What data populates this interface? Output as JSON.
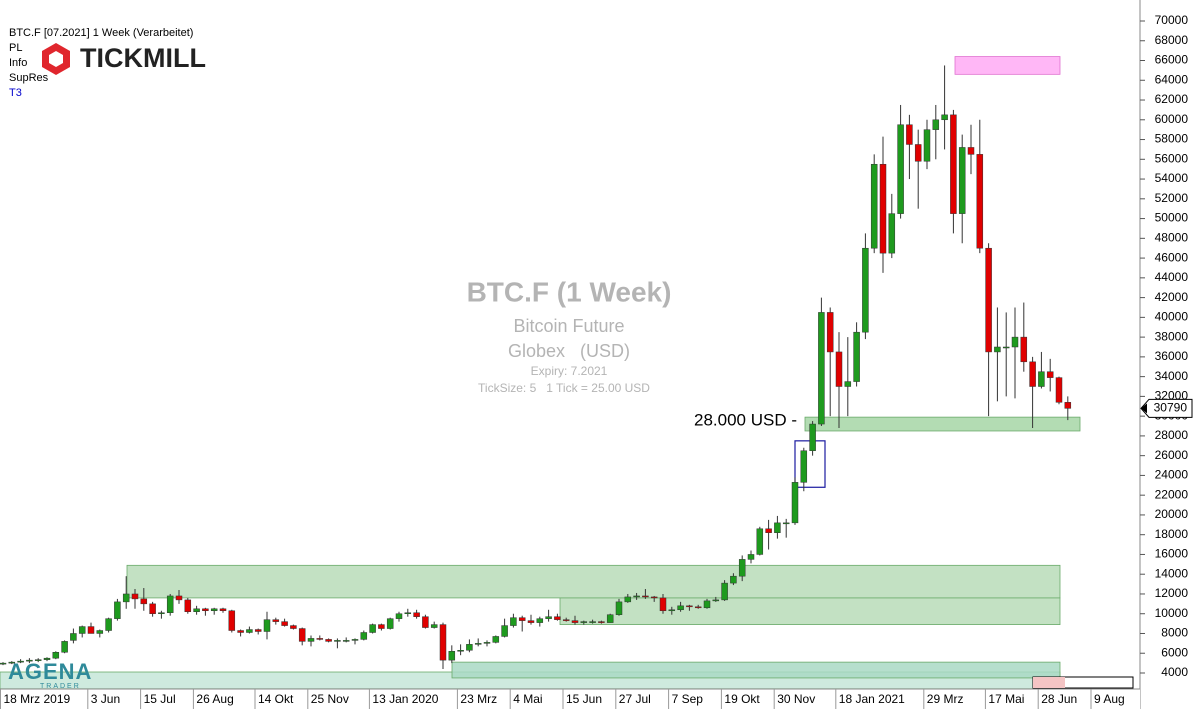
{
  "chart_data": {
    "type": "candlestick",
    "header": {
      "title": "BTC.F [07.2021] 1 Week (Verarbeitet)",
      "items": [
        "PL",
        "Info",
        "SupRes",
        "T3"
      ]
    },
    "logos": {
      "broker": "TICKMILL",
      "platform": "AGENA",
      "platform_sub": "TRADER"
    },
    "watermark": {
      "title": "BTC.F (1 Week)",
      "name": "Bitcoin Future",
      "exchange": "Globex   (USD)",
      "expiry": "Expiry: 7.2021",
      "ticksize": "TickSize: 5   1 Tick = 25.00 USD"
    },
    "annotation": "28.000 USD -",
    "up_color": "#1e9a1e",
    "down_color": "#e00000",
    "categories": [
      "18 Mrz 2019",
      null,
      null,
      null,
      null,
      null,
      null,
      null,
      null,
      null,
      null,
      "3 Jun",
      null,
      null,
      null,
      null,
      null,
      "15 Jul",
      null,
      null,
      null,
      null,
      null,
      "26 Aug",
      null,
      null,
      null,
      null,
      null,
      null,
      "14 Okt",
      null,
      null,
      null,
      null,
      null,
      "25 Nov",
      null,
      null,
      null,
      null,
      null,
      null,
      "13 Jan 2020",
      null,
      null,
      null,
      null,
      null,
      null,
      null,
      null,
      null,
      "23 Mrz",
      null,
      null,
      null,
      null,
      null,
      "4 Mai",
      null,
      null,
      null,
      null,
      null,
      "15 Jun",
      null,
      null,
      null,
      null,
      null,
      "27 Jul",
      null,
      null,
      null,
      null,
      null,
      "7 Sep",
      null,
      null,
      null,
      null,
      null,
      "19 Okt",
      null,
      null,
      null,
      null,
      null,
      "30 Nov",
      null,
      null,
      null,
      null,
      null,
      null,
      "18 Jan 2021",
      null,
      null,
      null,
      null,
      null,
      null,
      null,
      null,
      null,
      "29 Mrz",
      null,
      null,
      null,
      null,
      null,
      null,
      "17 Mai",
      null,
      null,
      null,
      null,
      null,
      "28 Jun",
      null,
      null,
      null,
      null,
      null,
      "9 Aug"
    ],
    "open": [
      4950,
      5000,
      5100,
      5200,
      5300,
      5350,
      5500,
      6100,
      7300,
      8000,
      8700,
      8000,
      8300,
      9500,
      11200,
      12000,
      11500,
      11000,
      10000,
      10100,
      11800,
      11400,
      10200,
      10500,
      10300,
      10500,
      10300,
      8300,
      8100,
      8400,
      8200,
      9400,
      9200,
      8800,
      8500,
      7200,
      7500,
      7400,
      7200,
      7300,
      7300,
      7400,
      8100,
      8900,
      8500,
      9500,
      10000,
      10100,
      9700,
      8600,
      8900,
      5300,
      6200,
      6300,
      6900,
      7000,
      7100,
      7700,
      8800,
      9600,
      9300,
      9100,
      9500,
      9700,
      9400,
      9300,
      9100,
      9200,
      9200,
      9100,
      9900,
      11200,
      11700,
      11800,
      11700,
      11600,
      10300,
      10400,
      10800,
      10700,
      10600,
      11300,
      11400,
      13100,
      13800,
      15500,
      16000,
      18600,
      18200,
      19200,
      19200,
      23300,
      26500,
      29200,
      40500,
      36500,
      33000,
      33500,
      38500,
      47000,
      55500,
      46500,
      50500,
      59500,
      57500,
      55800,
      59000,
      60000,
      60500,
      50500,
      57200,
      56500,
      47000,
      36500,
      37000,
      37000,
      38000,
      35500,
      33000,
      34500,
      33900,
      31400,
      null,
      null,
      null,
      null
    ],
    "high": [
      5100,
      5200,
      5400,
      5500,
      5500,
      5600,
      6200,
      7300,
      8500,
      8800,
      9100,
      8400,
      9600,
      11500,
      13800,
      12500,
      12600,
      11200,
      10300,
      12000,
      12400,
      11600,
      10800,
      10600,
      10600,
      10600,
      10400,
      8400,
      8700,
      8500,
      10200,
      9600,
      9500,
      8900,
      8600,
      7800,
      7800,
      7500,
      7500,
      7600,
      7500,
      8300,
      9000,
      9000,
      9600,
      10200,
      10500,
      10400,
      9900,
      9200,
      9100,
      6800,
      6900,
      7400,
      7500,
      7300,
      7800,
      9500,
      10000,
      9800,
      9900,
      9700,
      10400,
      10000,
      9600,
      9800,
      9300,
      9400,
      9300,
      10000,
      11500,
      12000,
      12100,
      12500,
      11800,
      12000,
      10700,
      11200,
      10900,
      10900,
      11500,
      11700,
      13400,
      14100,
      15900,
      16400,
      18800,
      19500,
      19900,
      19600,
      23800,
      26800,
      29500,
      42000,
      41000,
      38500,
      38000,
      39500,
      48500,
      56500,
      58300,
      52500,
      61500,
      60500,
      59000,
      60000,
      61500,
      65500,
      61000,
      58500,
      59500,
      60000,
      47500,
      41000,
      40500,
      41000,
      41500,
      36000,
      36500,
      35800,
      34000,
      32000,
      null,
      null,
      null,
      null
    ],
    "low": [
      4800,
      4900,
      5000,
      5000,
      5100,
      5200,
      5400,
      6000,
      7000,
      7600,
      8000,
      7600,
      8100,
      9300,
      10500,
      10500,
      10300,
      9700,
      9500,
      9800,
      11000,
      10000,
      9900,
      9800,
      9900,
      10100,
      8100,
      7700,
      8000,
      7900,
      7400,
      8900,
      8700,
      8400,
      6800,
      6700,
      7300,
      7100,
      6500,
      7100,
      6900,
      7300,
      8000,
      8300,
      8400,
      9200,
      9700,
      9500,
      8500,
      8500,
      4400,
      5000,
      5800,
      6100,
      6700,
      6700,
      7000,
      7600,
      8600,
      8200,
      8900,
      8700,
      9200,
      9300,
      9200,
      8900,
      8900,
      9000,
      9000,
      9100,
      9800,
      11100,
      11400,
      11500,
      11200,
      10000,
      9900,
      10200,
      10300,
      10500,
      10500,
      11200,
      11300,
      12900,
      13300,
      15100,
      15900,
      16500,
      17600,
      17700,
      19000,
      22400,
      26000,
      29000,
      30000,
      28800,
      30000,
      33000,
      37800,
      46500,
      44500,
      46000,
      50000,
      54000,
      51000,
      55000,
      56000,
      57000,
      48500,
      47500,
      54500,
      46500,
      30000,
      31500,
      32000,
      31800,
      34500,
      28800,
      32800,
      32500,
      31200,
      29600,
      null,
      null,
      null,
      null
    ],
    "close": [
      5000,
      5100,
      5200,
      5300,
      5350,
      5500,
      6100,
      7200,
      8000,
      8700,
      8000,
      8300,
      9500,
      11200,
      12000,
      11500,
      11000,
      10000,
      10100,
      11800,
      11400,
      10200,
      10500,
      10300,
      10500,
      10300,
      8300,
      8100,
      8400,
      8200,
      9400,
      9200,
      8800,
      8500,
      7200,
      7500,
      7400,
      7200,
      7300,
      7300,
      7400,
      8100,
      8900,
      8500,
      9500,
      10000,
      10100,
      9700,
      8600,
      8900,
      5300,
      6200,
      6300,
      6900,
      7000,
      7100,
      7700,
      8800,
      9600,
      9300,
      9100,
      9500,
      9700,
      9400,
      9300,
      9100,
      9200,
      9200,
      9100,
      9900,
      11200,
      11700,
      11800,
      11700,
      11600,
      10300,
      10400,
      10800,
      10700,
      10600,
      11300,
      11400,
      13100,
      13800,
      15500,
      16000,
      18600,
      18200,
      19200,
      19200,
      23300,
      26500,
      29200,
      40500,
      36500,
      33000,
      33500,
      38500,
      47000,
      55500,
      46500,
      50500,
      59500,
      57500,
      55800,
      59000,
      60000,
      60500,
      50500,
      57200,
      56500,
      47000,
      36500,
      37000,
      37000,
      38000,
      35500,
      33000,
      34500,
      33900,
      31400,
      30790,
      null,
      null,
      null,
      null
    ],
    "zones": [
      {
        "low": 11600,
        "high": 14900,
        "color": "#b9dcb9"
      },
      {
        "low": 8900,
        "high": 11600,
        "color": "#b9dcb9"
      },
      {
        "low": 2400,
        "high": 4100,
        "color": "#c6e6d8"
      },
      {
        "low": 3500,
        "high": 5100,
        "color": "#a9d9c4"
      },
      {
        "low": 28500,
        "high": 29900,
        "color": "#a6d6a6"
      },
      {
        "low": 64600,
        "high": 66400,
        "color": "#ffaaf4"
      },
      {
        "low": 22800,
        "high": 27500,
        "color": "#1a1aa0"
      }
    ],
    "ylim": [
      2380,
      72125
    ],
    "yticks": [
      4000,
      6000,
      8000,
      10000,
      12000,
      14000,
      16000,
      18000,
      20000,
      22000,
      24000,
      26000,
      28000,
      30000,
      32000,
      34000,
      36000,
      38000,
      40000,
      42000,
      44000,
      46000,
      48000,
      50000,
      52000,
      54000,
      56000,
      58000,
      60000,
      62000,
      64000,
      66000,
      68000,
      70000
    ]
  }
}
